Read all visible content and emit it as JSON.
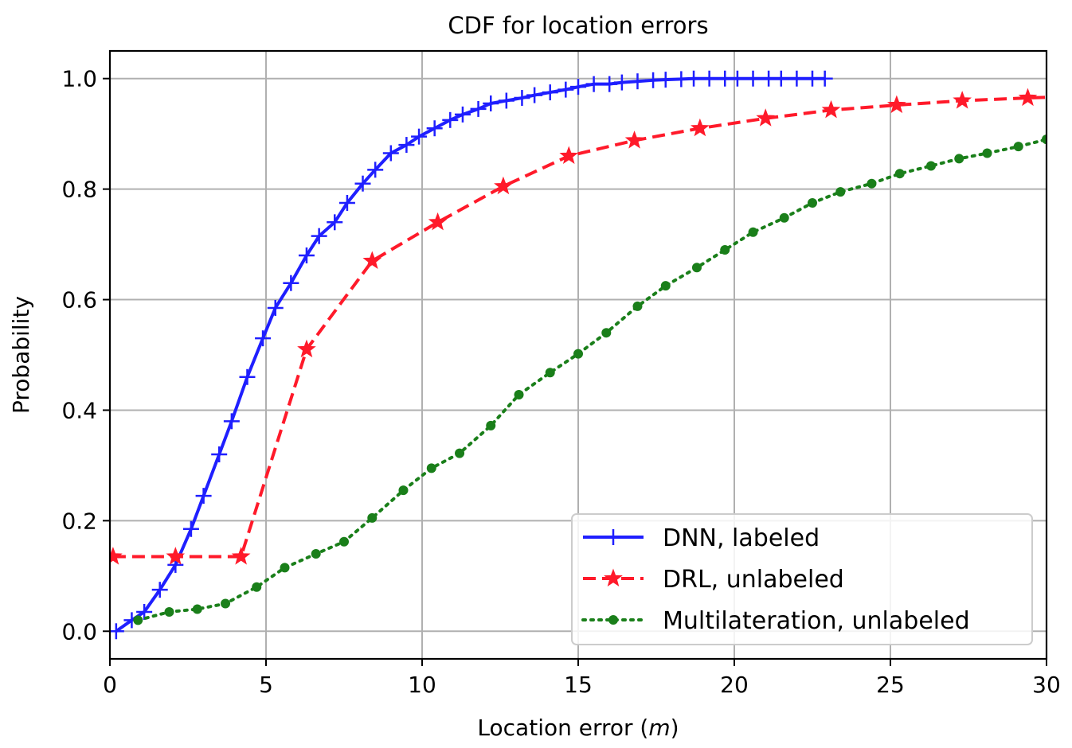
{
  "chart_data": {
    "type": "line",
    "title": "CDF for location errors",
    "xlabel": "Location error (",
    "xlabel_unit": "m",
    "xlabel_close": ")",
    "ylabel": "Probability",
    "xlim": [
      0,
      30
    ],
    "ylim": [
      -0.05,
      1.05
    ],
    "xticks": [
      0,
      5,
      10,
      15,
      20,
      25,
      30
    ],
    "yticks": [
      0.0,
      0.2,
      0.4,
      0.6,
      0.8,
      1.0
    ],
    "xtick_labels": [
      "0",
      "5",
      "10",
      "15",
      "20",
      "25",
      "30"
    ],
    "ytick_labels": [
      "0.0",
      "0.2",
      "0.4",
      "0.6",
      "0.8",
      "1.0"
    ],
    "grid": true,
    "legend_position": "lower-right",
    "series": [
      {
        "name": "DNN, labeled",
        "color": "#1f1fff",
        "dash": "solid",
        "marker": "plus",
        "x": [
          0.2,
          0.7,
          1.1,
          1.6,
          2.1,
          2.6,
          3.0,
          3.5,
          3.9,
          4.4,
          4.9,
          5.3,
          5.8,
          6.3,
          6.7,
          7.2,
          7.6,
          8.1,
          8.5,
          9.0,
          9.5,
          9.9,
          10.4,
          10.9,
          11.3,
          11.8,
          12.2,
          12.7,
          13.2,
          13.6,
          14.1,
          14.6,
          15.0,
          15.5,
          16.0,
          16.4,
          16.9,
          17.4,
          17.8,
          18.3,
          18.7,
          19.2,
          19.7,
          20.1,
          20.6,
          21.1,
          21.5,
          22.0,
          22.5,
          22.9
        ],
        "y": [
          0.0,
          0.02,
          0.035,
          0.075,
          0.12,
          0.185,
          0.245,
          0.32,
          0.38,
          0.46,
          0.53,
          0.585,
          0.63,
          0.68,
          0.715,
          0.74,
          0.775,
          0.81,
          0.835,
          0.865,
          0.88,
          0.895,
          0.91,
          0.925,
          0.935,
          0.945,
          0.955,
          0.96,
          0.965,
          0.97,
          0.975,
          0.98,
          0.985,
          0.99,
          0.99,
          0.993,
          0.995,
          0.997,
          0.998,
          0.999,
          1.0,
          1.0,
          1.0,
          1.0,
          1.0,
          1.0,
          1.0,
          1.0,
          1.0,
          1.0
        ]
      },
      {
        "name": "DRL, unlabeled",
        "color": "#ff1a2a",
        "dash": "dashed",
        "marker": "star",
        "x": [
          0.1,
          2.1,
          4.2,
          6.3,
          8.4,
          10.5,
          12.6,
          14.7,
          16.8,
          18.9,
          21.0,
          23.1,
          25.2,
          27.3,
          29.4,
          30.5
        ],
        "y": [
          0.135,
          0.135,
          0.135,
          0.51,
          0.67,
          0.74,
          0.805,
          0.86,
          0.888,
          0.91,
          0.928,
          0.943,
          0.952,
          0.96,
          0.965,
          0.967
        ]
      },
      {
        "name": "Multilateration, unlabeled",
        "color": "#1a7f1a",
        "dash": "dotted",
        "marker": "circle",
        "x": [
          0.9,
          1.9,
          2.8,
          3.7,
          4.7,
          5.6,
          6.6,
          7.5,
          8.4,
          9.4,
          10.3,
          11.2,
          12.2,
          13.1,
          14.1,
          15.0,
          15.9,
          16.9,
          17.8,
          18.8,
          19.7,
          20.6,
          21.6,
          22.5,
          23.4,
          24.4,
          25.3,
          26.3,
          27.2,
          28.1,
          29.1,
          30.0
        ],
        "y": [
          0.02,
          0.035,
          0.04,
          0.05,
          0.08,
          0.115,
          0.14,
          0.162,
          0.205,
          0.255,
          0.295,
          0.322,
          0.372,
          0.428,
          0.468,
          0.502,
          0.54,
          0.588,
          0.625,
          0.658,
          0.69,
          0.722,
          0.748,
          0.775,
          0.795,
          0.81,
          0.828,
          0.842,
          0.855,
          0.865,
          0.877,
          0.89
        ]
      }
    ]
  }
}
